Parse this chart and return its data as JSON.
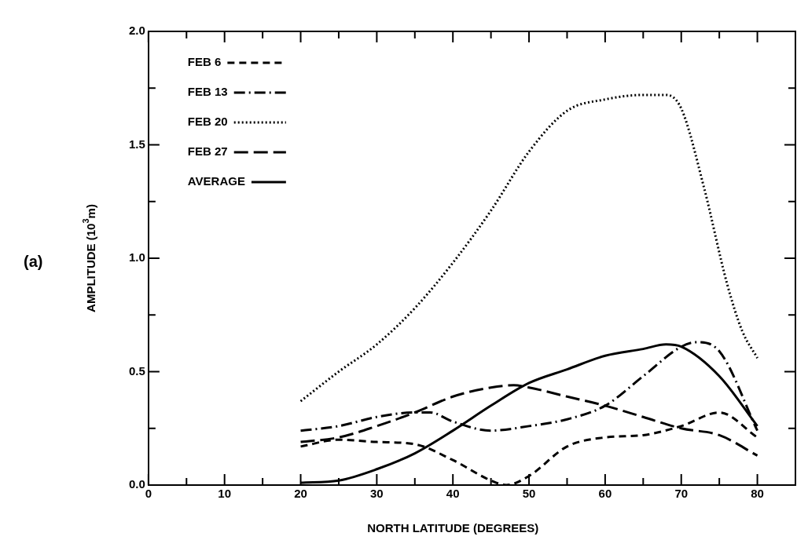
{
  "chart_data": {
    "type": "line",
    "xlabel": "NORTH LATITUDE (DEGREES)",
    "ylabel": "AMPLITUDE (10$^{3}$m)",
    "annotations": [
      "(a)"
    ],
    "xlim": [
      0,
      85
    ],
    "xticks": [
      0,
      {
        "value": 5,
        "label": null
      },
      10,
      {
        "value": 15,
        "label": null
      },
      20,
      {
        "value": 25,
        "label": null
      },
      30,
      {
        "value": 35,
        "label": null
      },
      40,
      {
        "value": 45,
        "label": null
      },
      50,
      {
        "value": 55,
        "label": null
      },
      60,
      {
        "value": 65,
        "label": null
      },
      70,
      {
        "value": 75,
        "label": null
      },
      80
    ],
    "ylim": [
      0,
      2
    ],
    "yticks": [
      {
        "value": 0,
        "label": "0.0"
      },
      {
        "value": 0.25,
        "label": null
      },
      {
        "value": 0.5,
        "label": "0.5"
      },
      {
        "value": 0.75,
        "label": null
      },
      {
        "value": 1,
        "label": "1.0"
      },
      {
        "value": 1.25,
        "label": null
      },
      {
        "value": 1.5,
        "label": "1.5"
      },
      {
        "value": 1.75,
        "label": null
      },
      {
        "value": 2,
        "label": "2.0"
      }
    ],
    "grid": false,
    "legend": "top left",
    "marker": "none",
    "series": [
      {
        "name": "FEB 6",
        "color": "#000000",
        "line_style": "dashed",
        "x": [
          20,
          25,
          30,
          35,
          40,
          45,
          47,
          50,
          55,
          60,
          65,
          70,
          75,
          80
        ],
        "values": [
          0.17,
          0.2,
          0.19,
          0.18,
          0.11,
          0.02,
          0.0,
          0.04,
          0.17,
          0.21,
          0.22,
          0.26,
          0.32,
          0.21
        ]
      },
      {
        "name": "FEB 13",
        "color": "#000000",
        "line_style": "dashdot",
        "x": [
          20,
          25,
          30,
          35,
          37,
          40,
          45,
          50,
          55,
          60,
          65,
          70,
          72,
          75,
          80
        ],
        "values": [
          0.24,
          0.26,
          0.3,
          0.32,
          0.32,
          0.28,
          0.24,
          0.26,
          0.29,
          0.35,
          0.48,
          0.61,
          0.63,
          0.59,
          0.24
        ]
      },
      {
        "name": "FEB 20",
        "color": "#000000",
        "line_style": "dotted",
        "x": [
          20,
          25,
          30,
          35,
          40,
          45,
          50,
          55,
          60,
          65,
          68,
          70,
          73,
          76,
          78,
          80
        ],
        "values": [
          0.37,
          0.5,
          0.62,
          0.78,
          0.98,
          1.21,
          1.47,
          1.65,
          1.7,
          1.72,
          1.72,
          1.66,
          1.31,
          0.89,
          0.68,
          0.56
        ]
      },
      {
        "name": "FEB 27",
        "color": "#000000",
        "line_style": "longdash",
        "x": [
          20,
          25,
          30,
          35,
          40,
          45,
          48,
          50,
          55,
          60,
          65,
          70,
          75,
          80
        ],
        "values": [
          0.19,
          0.21,
          0.26,
          0.32,
          0.39,
          0.43,
          0.44,
          0.43,
          0.39,
          0.35,
          0.3,
          0.25,
          0.22,
          0.13
        ]
      },
      {
        "name": "AVERAGE",
        "color": "#000000",
        "line_style": "solid",
        "x": [
          20,
          25,
          30,
          35,
          40,
          45,
          50,
          55,
          60,
          65,
          68,
          70,
          75,
          80
        ],
        "values": [
          0.01,
          0.02,
          0.07,
          0.14,
          0.24,
          0.35,
          0.45,
          0.51,
          0.57,
          0.6,
          0.62,
          0.61,
          0.48,
          0.26
        ]
      }
    ]
  }
}
